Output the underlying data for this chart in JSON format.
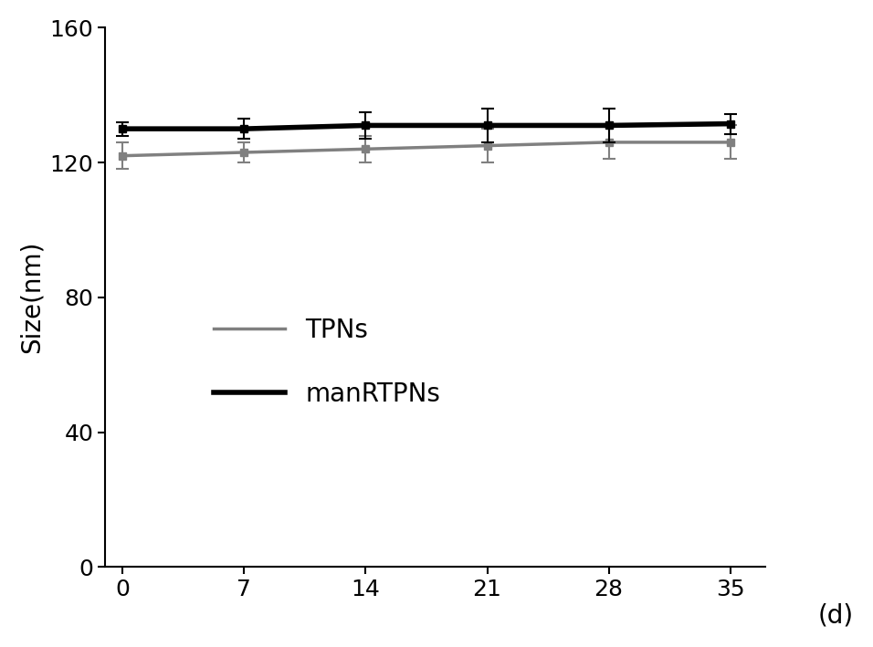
{
  "x": [
    0,
    7,
    14,
    21,
    28,
    35
  ],
  "tpns_y": [
    122,
    123,
    124,
    125,
    126,
    126
  ],
  "tpns_yerr": [
    4,
    3,
    4,
    5,
    5,
    5
  ],
  "manrtpns_y": [
    130,
    130,
    131,
    131,
    131,
    131.5
  ],
  "manrtpns_yerr": [
    2,
    3,
    4,
    5,
    5,
    3
  ],
  "tpns_color": "#808080",
  "manrtpns_color": "#000000",
  "tpns_label": "TPNs",
  "manrtpns_label": "manRTPNs",
  "ylabel": "Size(nm)",
  "xlabel_unit": "(d)",
  "xlim": [
    -1,
    37
  ],
  "ylim": [
    0,
    160
  ],
  "yticks": [
    0,
    40,
    80,
    120,
    160
  ],
  "xticks": [
    0,
    7,
    14,
    21,
    28,
    35
  ],
  "linewidth_tpns": 2.5,
  "linewidth_manrtpns": 4.0,
  "capsize": 5,
  "legend_fontsize": 20,
  "axis_fontsize": 20,
  "tick_fontsize": 18,
  "background_color": "#ffffff",
  "markersize": 6,
  "elinewidth": 1.5,
  "capthick": 1.5
}
